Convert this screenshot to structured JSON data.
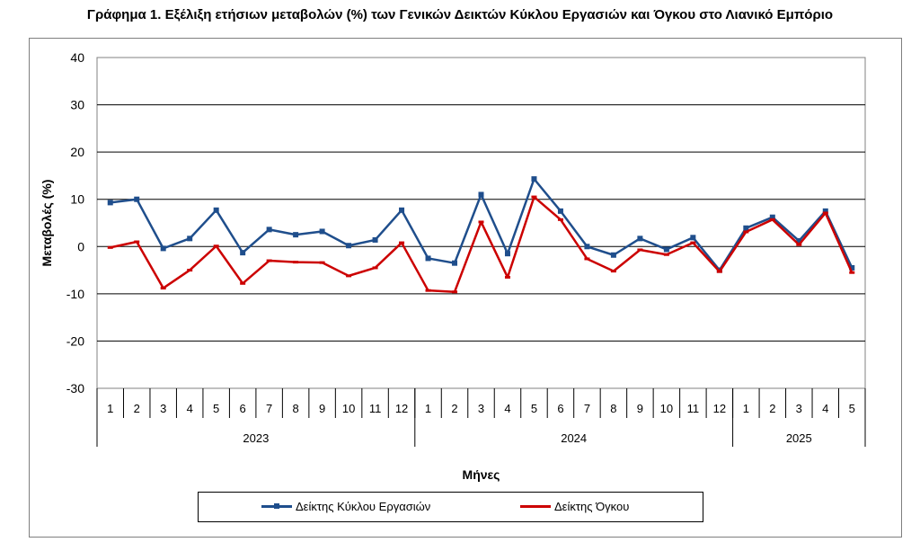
{
  "title": "Γράφημα 1. Εξέλιξη ετήσιων μεταβολών (%) των Γενικών Δεικτών Κύκλου Εργασιών και Όγκου στο Λιανικό Εμπόριο",
  "chart_data": {
    "type": "line",
    "title": "Γράφημα 1. Εξέλιξη ετήσιων μεταβολών (%) των Γενικών Δεικτών Κύκλου Εργασιών και Όγκου στο Λιανικό Εμπόριο",
    "xlabel": "Μήνες",
    "ylabel": "Μεταβολές (%)",
    "ylim": [
      -30,
      40
    ],
    "yticks": [
      -30,
      -20,
      -10,
      0,
      10,
      20,
      30,
      40
    ],
    "grid": true,
    "legend_position": "bottom",
    "years": [
      {
        "label": "2023",
        "months": 12
      },
      {
        "label": "2024",
        "months": 12
      },
      {
        "label": "2025",
        "months": 5
      }
    ],
    "categories": [
      "1",
      "2",
      "3",
      "4",
      "5",
      "6",
      "7",
      "8",
      "9",
      "10",
      "11",
      "12",
      "1",
      "2",
      "3",
      "4",
      "5",
      "6",
      "7",
      "8",
      "9",
      "10",
      "11",
      "12",
      "1",
      "2",
      "3",
      "4",
      "5"
    ],
    "series": [
      {
        "name": "Δείκτης Κύκλου Εργασιών",
        "color": "#1f4e8c",
        "marker": "square",
        "values": [
          9.3,
          10.0,
          -0.4,
          1.7,
          7.7,
          -1.3,
          3.6,
          2.5,
          3.2,
          0.2,
          1.4,
          7.7,
          -2.5,
          -3.5,
          11.0,
          -1.5,
          14.3,
          7.5,
          0.0,
          -1.8,
          1.7,
          -0.6,
          1.9,
          -5.0,
          3.9,
          6.2,
          1.2,
          7.5,
          -4.5
        ]
      },
      {
        "name": "Δείκτης Όγκου",
        "color": "#cc0000",
        "marker": "dash",
        "values": [
          -0.2,
          1.0,
          -8.8,
          -5.0,
          0.1,
          -7.8,
          -3.0,
          -3.3,
          -3.4,
          -6.2,
          -4.5,
          0.8,
          -9.3,
          -9.6,
          5.2,
          -6.5,
          10.5,
          5.7,
          -2.6,
          -5.2,
          -0.7,
          -1.7,
          0.8,
          -5.3,
          3.1,
          5.7,
          0.4,
          7.1,
          -5.5
        ]
      }
    ]
  }
}
